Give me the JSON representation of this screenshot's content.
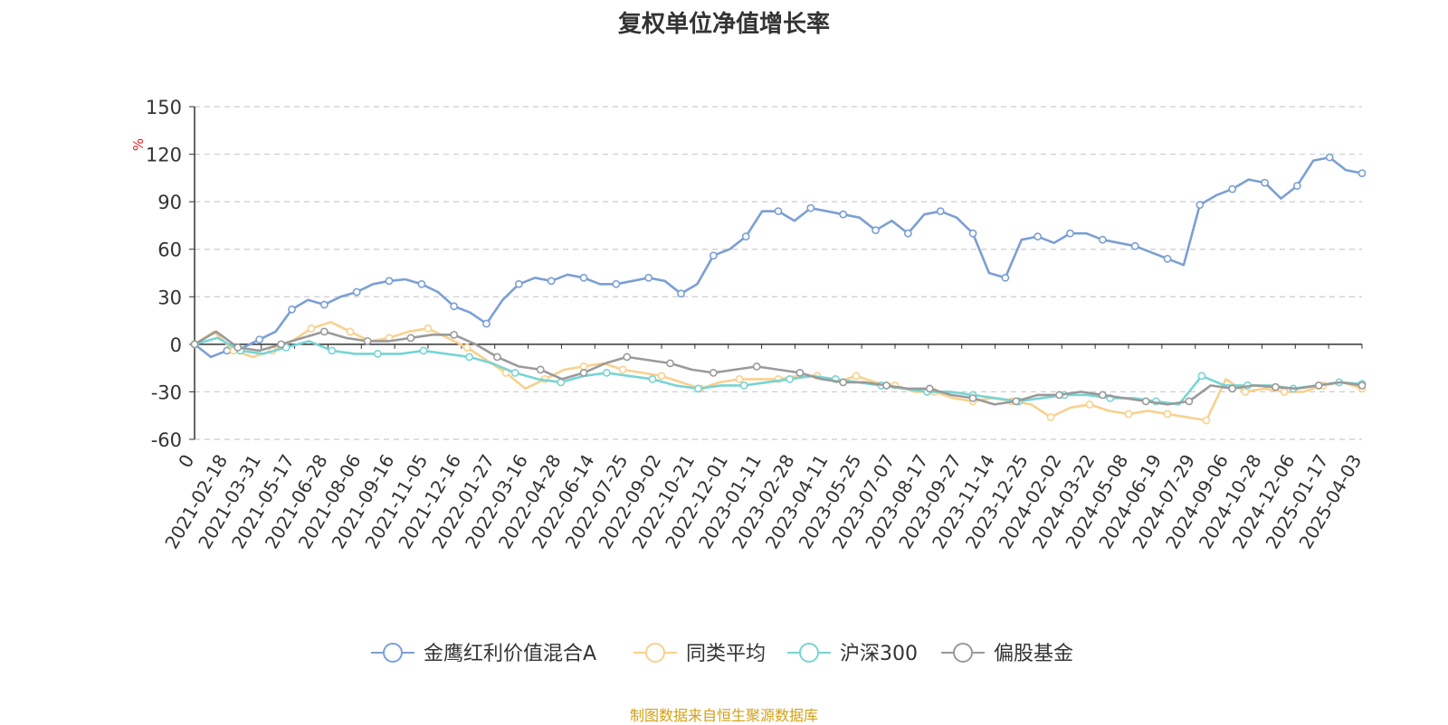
{
  "footer_text": "制图数据来自恒生聚源数据库",
  "chart_data": {
    "type": "line",
    "title": "复权单位净值增长率",
    "ylabel": "%",
    "ylim": [
      -60,
      150
    ],
    "yticks": [
      150,
      120,
      90,
      60,
      30,
      0,
      -30,
      -60
    ],
    "xtick_labels": [
      "0",
      "2021-02-18",
      "2021-03-31",
      "2021-05-17",
      "2021-06-28",
      "2021-08-06",
      "2021-09-16",
      "2021-11-05",
      "2021-12-16",
      "2022-01-27",
      "2022-03-16",
      "2022-04-28",
      "2022-06-14",
      "2022-07-25",
      "2022-09-02",
      "2022-10-21",
      "2022-12-01",
      "2023-01-11",
      "2023-02-28",
      "2023-04-11",
      "2023-05-25",
      "2023-07-07",
      "2023-08-17",
      "2023-09-27",
      "2023-11-14",
      "2023-12-25",
      "2024-02-02",
      "2024-03-22",
      "2024-05-08",
      "2024-06-19",
      "2024-07-29",
      "2024-09-06",
      "2024-10-28",
      "2024-12-06",
      "2025-01-17",
      "2025-04-03"
    ],
    "grid": true,
    "legend_position": "bottom",
    "series": [
      {
        "name": "金鹰红利价值混合A",
        "color": "#7b9fd4",
        "values": [
          0,
          -8,
          -4,
          -2,
          3,
          8,
          22,
          28,
          25,
          30,
          33,
          38,
          40,
          41,
          38,
          33,
          24,
          20,
          13,
          28,
          38,
          42,
          40,
          44,
          42,
          38,
          38,
          40,
          42,
          40,
          32,
          38,
          56,
          60,
          68,
          84,
          84,
          78,
          86,
          84,
          82,
          80,
          72,
          78,
          70,
          82,
          84,
          80,
          70,
          45,
          42,
          66,
          68,
          64,
          70,
          70,
          66,
          64,
          62,
          58,
          54,
          50,
          88,
          94,
          98,
          104,
          102,
          92,
          100,
          116,
          118,
          110,
          108
        ]
      },
      {
        "name": "同类平均",
        "color": "#f9d08d",
        "values": [
          0,
          8,
          -4,
          -8,
          -4,
          2,
          10,
          14,
          8,
          2,
          4,
          8,
          10,
          4,
          -2,
          -10,
          -18,
          -28,
          -22,
          -16,
          -14,
          -12,
          -16,
          -18,
          -20,
          -24,
          -28,
          -24,
          -22,
          -22,
          -22,
          -20,
          -20,
          -24,
          -20,
          -24,
          -26,
          -30,
          -30,
          -34,
          -36,
          -34,
          -36,
          -38,
          -46,
          -40,
          -38,
          -42,
          -44,
          -42,
          -44,
          -46,
          -48,
          -22,
          -30,
          -28,
          -30,
          -30,
          -26,
          -24,
          -28
        ]
      },
      {
        "name": "沪深300",
        "color": "#78d4d4",
        "values": [
          0,
          4,
          -4,
          -6,
          -2,
          2,
          -4,
          -6,
          -6,
          -6,
          -4,
          -6,
          -8,
          -12,
          -18,
          -22,
          -24,
          -20,
          -18,
          -20,
          -22,
          -26,
          -28,
          -26,
          -26,
          -24,
          -22,
          -20,
          -22,
          -24,
          -26,
          -28,
          -30,
          -30,
          -32,
          -34,
          -36,
          -34,
          -32,
          -32,
          -34,
          -34,
          -36,
          -38,
          -20,
          -26,
          -26,
          -26,
          -28,
          -26,
          -24,
          -25
        ]
      },
      {
        "name": "偏股基金",
        "color": "#9a9a9a",
        "values": [
          0,
          8,
          -2,
          -4,
          0,
          4,
          8,
          4,
          2,
          2,
          4,
          6,
          6,
          0,
          -8,
          -14,
          -16,
          -22,
          -18,
          -12,
          -8,
          -10,
          -12,
          -16,
          -18,
          -16,
          -14,
          -16,
          -18,
          -22,
          -24,
          -24,
          -26,
          -28,
          -28,
          -32,
          -34,
          -38,
          -36,
          -32,
          -32,
          -30,
          -32,
          -34,
          -36,
          -38,
          -36,
          -26,
          -28,
          -26,
          -27,
          -28,
          -26,
          -24,
          -26
        ]
      }
    ]
  }
}
